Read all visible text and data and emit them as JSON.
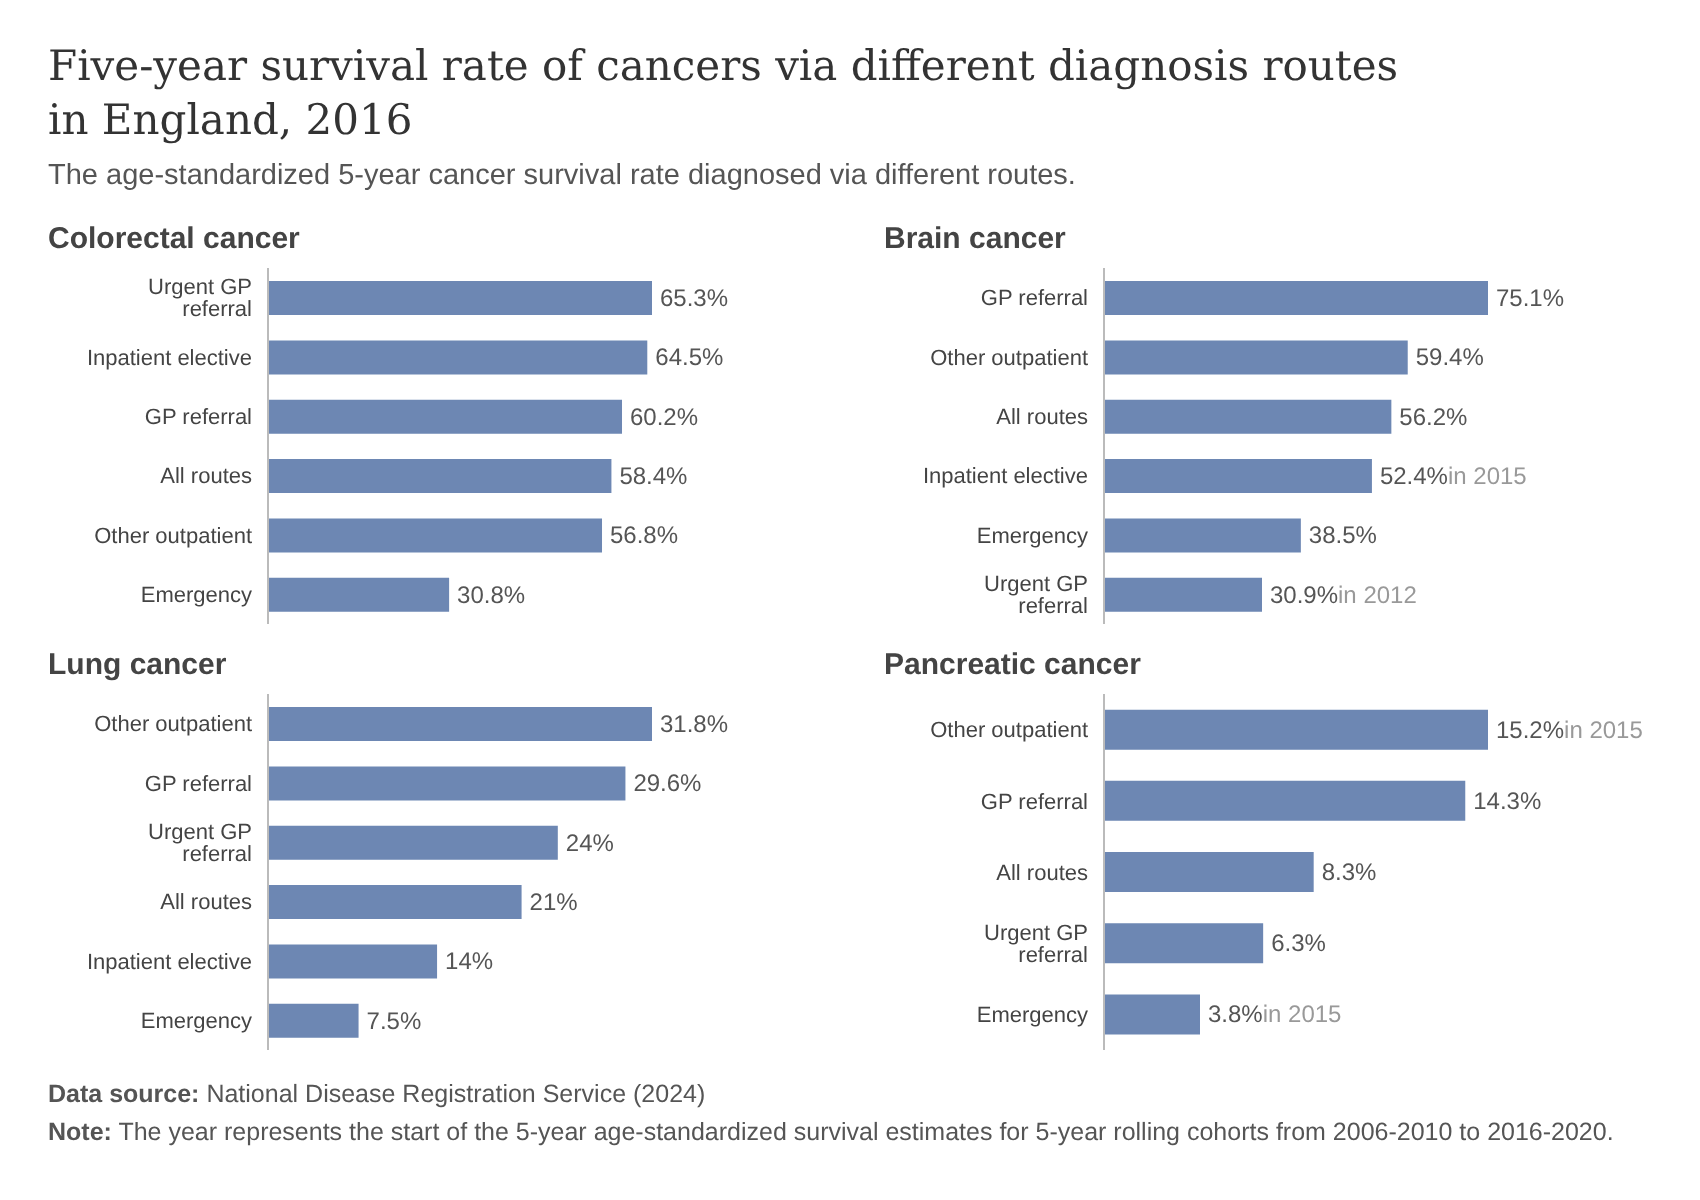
{
  "chart_data": [
    {
      "type": "other",
      "title": "Five-year survival rate of cancers via different diagnosis routes in England, 2016",
      "subtitle": "The age-standardized 5-year cancer survival rate diagnosed via different routes.",
      "annotations": [
        "Data source: National Disease Registration Service (2024)",
        "Note: The year represents the start of the 5-year age-standardized survival estimates for 5-year rolling cohorts from 2006-2010 to 2016-2020."
      ]
    },
    {
      "type": "bar",
      "orientation": "horizontal",
      "title": "Colorectal cancer",
      "categories": [
        "Urgent GP referral",
        "Inpatient elective",
        "GP referral",
        "All routes",
        "Other outpatient",
        "Emergency"
      ],
      "values": [
        65.3,
        64.5,
        60.2,
        58.4,
        56.8,
        30.8
      ],
      "color": "#6d87b3",
      "value_labels": [
        "65.3%",
        "64.5%",
        "60.2%",
        "58.4%",
        "56.8%",
        "30.8%"
      ]
    },
    {
      "type": "bar",
      "orientation": "horizontal",
      "title": "Brain cancer",
      "categories": [
        "GP referral",
        "Other outpatient",
        "All routes",
        "Inpatient elective",
        "Emergency",
        "Urgent GP referral"
      ],
      "values": [
        75.1,
        59.4,
        56.2,
        52.4,
        38.5,
        30.9
      ],
      "color": "#6d87b3",
      "value_labels": [
        "75.1%",
        "59.4%",
        "56.2%",
        "52.4%in 2015",
        "38.5%",
        "30.9%in 2012"
      ]
    },
    {
      "type": "bar",
      "orientation": "horizontal",
      "title": "Lung cancer",
      "categories": [
        "Other outpatient",
        "GP referral",
        "Urgent GP referral",
        "All routes",
        "Inpatient elective",
        "Emergency"
      ],
      "values": [
        31.8,
        29.6,
        24,
        21,
        14,
        7.5
      ],
      "color": "#6d87b3",
      "value_labels": [
        "31.8%",
        "29.6%",
        "24%",
        "21%",
        "14%",
        "7.5%"
      ]
    },
    {
      "type": "bar",
      "orientation": "horizontal",
      "title": "Pancreatic cancer",
      "categories": [
        "Other outpatient",
        "GP referral",
        "All routes",
        "Urgent GP referral",
        "Emergency"
      ],
      "values": [
        15.2,
        14.3,
        8.3,
        6.3,
        3.8
      ],
      "color": "#6d87b3",
      "value_labels": [
        "15.2%in 2015",
        "14.3%",
        "8.3%",
        "6.3%",
        "3.8%in 2015"
      ]
    }
  ]
}
